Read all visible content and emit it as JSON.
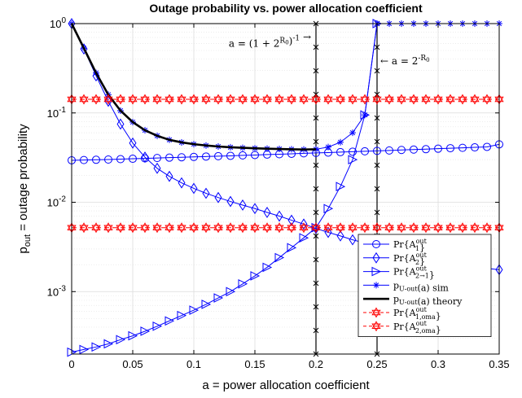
{
  "chart_data": {
    "type": "line",
    "title": "Outage probability vs. power allocation coefficient",
    "xlabel": "a = power allocation coefficient",
    "ylabel": {
      "main": "p",
      "sub": "out",
      "rest": " = outage probability"
    },
    "xscale": "linear",
    "yscale": "log",
    "xlim": [
      0,
      0.35
    ],
    "ylim": [
      0.0002,
      1
    ],
    "xticks": [
      0,
      0.05,
      0.1,
      0.15,
      0.2,
      0.25,
      0.3,
      0.35
    ],
    "xtick_labels": [
      "0",
      "0.05",
      "0.1",
      "0.15",
      "0.2",
      "0.25",
      "0.3",
      "0.35"
    ],
    "yticks": [
      {
        "value": 0.001,
        "base": "10",
        "exp": "-3"
      },
      {
        "value": 0.01,
        "base": "10",
        "exp": "-2"
      },
      {
        "value": 0.1,
        "base": "10",
        "exp": "-1"
      },
      {
        "value": 1,
        "base": "10",
        "exp": "0"
      }
    ],
    "grid": true,
    "minor_grid": true,
    "legend_position": "lower-right",
    "vlines": [
      {
        "x": 0.2,
        "marker": "x"
      },
      {
        "x": 0.25,
        "marker": "x"
      }
    ],
    "annotations": [
      {
        "text": "a = (1 + 2^{R0})^{-1} →",
        "x": 0.2,
        "y": 0.6,
        "anchor": "end"
      },
      {
        "text": "← a = 2^{-R0}",
        "x": 0.25,
        "y": 0.38,
        "anchor": "start"
      }
    ],
    "series": [
      {
        "name": "Pr{A_1^out}",
        "color": "#0000ff",
        "marker": "circle",
        "line": "solid",
        "x": [
          0,
          0.01,
          0.02,
          0.03,
          0.04,
          0.05,
          0.06,
          0.07,
          0.08,
          0.09,
          0.1,
          0.11,
          0.12,
          0.13,
          0.14,
          0.15,
          0.16,
          0.17,
          0.18,
          0.19,
          0.2,
          0.21,
          0.22,
          0.23,
          0.24,
          0.25,
          0.26,
          0.27,
          0.28,
          0.29,
          0.3,
          0.31,
          0.32,
          0.33,
          0.34,
          0.35
        ],
        "y": [
          0.0295,
          0.0297,
          0.0299,
          0.0301,
          0.0304,
          0.0307,
          0.031,
          0.0313,
          0.0316,
          0.0319,
          0.0322,
          0.0325,
          0.0328,
          0.0331,
          0.0335,
          0.0338,
          0.0342,
          0.0345,
          0.0349,
          0.0353,
          0.0357,
          0.036,
          0.0364,
          0.0368,
          0.0372,
          0.0376,
          0.038,
          0.0385,
          0.0389,
          0.0393,
          0.0398,
          0.0403,
          0.0407,
          0.0412,
          0.0417,
          0.0445
        ]
      },
      {
        "name": "Pr{A_2^out}",
        "color": "#0000ff",
        "marker": "diamond",
        "line": "solid",
        "x": [
          0,
          0.01,
          0.02,
          0.03,
          0.04,
          0.05,
          0.06,
          0.07,
          0.08,
          0.09,
          0.1,
          0.11,
          0.12,
          0.13,
          0.14,
          0.15,
          0.16,
          0.17,
          0.18,
          0.19,
          0.2,
          0.21,
          0.22,
          0.23,
          0.24,
          0.25,
          0.26,
          0.27,
          0.28,
          0.29,
          0.3,
          0.31,
          0.32,
          0.33,
          0.34,
          0.35
        ],
        "y": [
          1.0,
          0.52,
          0.26,
          0.135,
          0.075,
          0.046,
          0.032,
          0.024,
          0.0195,
          0.0165,
          0.0143,
          0.0126,
          0.0113,
          0.0102,
          0.0093,
          0.0085,
          0.0077,
          0.007,
          0.0063,
          0.0057,
          0.0051,
          0.0046,
          0.0042,
          0.0038,
          0.0035,
          0.0032,
          0.003,
          0.0028,
          0.0026,
          0.0024,
          0.0022,
          0.0021,
          0.002,
          0.0019,
          0.00182,
          0.00176
        ]
      },
      {
        "name": "Pr{A_{2→1}^out}",
        "color": "#0000ff",
        "marker": "triangle-right",
        "line": "solid",
        "x": [
          0,
          0.01,
          0.02,
          0.03,
          0.04,
          0.05,
          0.06,
          0.07,
          0.08,
          0.09,
          0.1,
          0.11,
          0.12,
          0.13,
          0.14,
          0.15,
          0.16,
          0.17,
          0.18,
          0.19,
          0.2,
          0.21,
          0.22,
          0.23,
          0.24,
          0.25
        ],
        "y": [
          0.00021,
          0.000225,
          0.00024,
          0.00026,
          0.00029,
          0.00032,
          0.00036,
          0.00041,
          0.00047,
          0.00054,
          0.00062,
          0.00072,
          0.00085,
          0.001,
          0.00122,
          0.0015,
          0.00187,
          0.0024,
          0.0031,
          0.004,
          0.0052,
          0.0085,
          0.015,
          0.03,
          0.095,
          1.0
        ]
      },
      {
        "name": "p_{U-out}(a) sim",
        "color": "#0000ff",
        "marker": "asterisk",
        "line": "solid",
        "x": [
          0,
          0.01,
          0.02,
          0.03,
          0.04,
          0.05,
          0.06,
          0.07,
          0.08,
          0.09,
          0.1,
          0.11,
          0.12,
          0.13,
          0.14,
          0.15,
          0.16,
          0.17,
          0.18,
          0.19,
          0.2,
          0.21,
          0.22,
          0.23,
          0.24,
          0.25,
          0.26,
          0.27,
          0.28,
          0.29,
          0.3,
          0.31,
          0.32,
          0.33,
          0.34,
          0.35
        ],
        "y": [
          1.0,
          0.53,
          0.28,
          0.16,
          0.106,
          0.079,
          0.064,
          0.0555,
          0.05,
          0.0468,
          0.0447,
          0.0432,
          0.0421,
          0.0413,
          0.0407,
          0.0402,
          0.0398,
          0.0395,
          0.0392,
          0.039,
          0.0392,
          0.0415,
          0.047,
          0.06,
          0.095,
          1.0,
          1.0,
          1.0,
          1.0,
          1.0,
          1.0,
          1.0,
          1.0,
          1.0,
          1.0,
          1.0
        ]
      },
      {
        "name": "p_{U-out}(a) theory",
        "color": "#000000",
        "marker": "none",
        "line": "solid-thick",
        "x": [
          0,
          0.01,
          0.02,
          0.03,
          0.04,
          0.05,
          0.06,
          0.07,
          0.08,
          0.09,
          0.1,
          0.11,
          0.12,
          0.13,
          0.14,
          0.15,
          0.16,
          0.17,
          0.18,
          0.19,
          0.2
        ],
        "y": [
          1.0,
          0.53,
          0.28,
          0.16,
          0.106,
          0.079,
          0.064,
          0.0555,
          0.05,
          0.0468,
          0.0447,
          0.0432,
          0.0421,
          0.0413,
          0.0407,
          0.0402,
          0.0398,
          0.0395,
          0.0392,
          0.039,
          0.0392
        ]
      },
      {
        "name": "Pr{A_{1,oma}^out}",
        "color": "#ff0000",
        "marker": "hexagram",
        "line": "dashed",
        "x": [
          0,
          0.01,
          0.02,
          0.03,
          0.04,
          0.05,
          0.06,
          0.07,
          0.08,
          0.09,
          0.1,
          0.11,
          0.12,
          0.13,
          0.14,
          0.15,
          0.16,
          0.17,
          0.18,
          0.19,
          0.2,
          0.21,
          0.22,
          0.23,
          0.24,
          0.25,
          0.26,
          0.27,
          0.28,
          0.29,
          0.3,
          0.31,
          0.32,
          0.33,
          0.34,
          0.35
        ],
        "y": [
          0.142,
          0.142,
          0.142,
          0.142,
          0.142,
          0.142,
          0.142,
          0.142,
          0.142,
          0.142,
          0.142,
          0.142,
          0.142,
          0.142,
          0.142,
          0.142,
          0.142,
          0.142,
          0.142,
          0.142,
          0.142,
          0.142,
          0.142,
          0.142,
          0.142,
          0.142,
          0.142,
          0.142,
          0.142,
          0.142,
          0.142,
          0.142,
          0.142,
          0.142,
          0.142,
          0.142
        ]
      },
      {
        "name": "Pr{A_{2,oma}^out}",
        "color": "#ff0000",
        "marker": "hexagram",
        "line": "dashed",
        "x": [
          0,
          0.01,
          0.02,
          0.03,
          0.04,
          0.05,
          0.06,
          0.07,
          0.08,
          0.09,
          0.1,
          0.11,
          0.12,
          0.13,
          0.14,
          0.15,
          0.16,
          0.17,
          0.18,
          0.19,
          0.2,
          0.21,
          0.22,
          0.23,
          0.24,
          0.25,
          0.26,
          0.27,
          0.28,
          0.29,
          0.3,
          0.31,
          0.32,
          0.33,
          0.34,
          0.35
        ],
        "y": [
          0.0052,
          0.0052,
          0.0052,
          0.0052,
          0.0052,
          0.0052,
          0.0052,
          0.0052,
          0.0052,
          0.0052,
          0.0052,
          0.0052,
          0.0052,
          0.0052,
          0.0052,
          0.0052,
          0.0052,
          0.0052,
          0.0052,
          0.0052,
          0.0052,
          0.0052,
          0.0052,
          0.0052,
          0.0052,
          0.0052,
          0.0052,
          0.0052,
          0.0052,
          0.0052,
          0.0052,
          0.0052,
          0.0052,
          0.0052,
          0.0052,
          0.0052
        ]
      }
    ]
  }
}
